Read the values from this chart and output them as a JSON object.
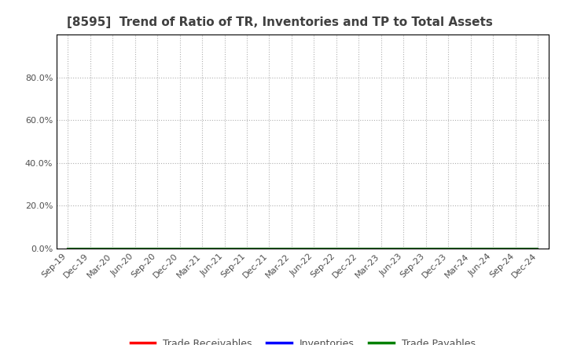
{
  "title": "[8595]  Trend of Ratio of TR, Inventories and TP to Total Assets",
  "title_fontsize": 11,
  "title_color": "#404040",
  "x_labels": [
    "Sep-19",
    "Dec-19",
    "Mar-20",
    "Jun-20",
    "Sep-20",
    "Dec-20",
    "Mar-21",
    "Jun-21",
    "Sep-21",
    "Dec-21",
    "Mar-22",
    "Jun-22",
    "Sep-22",
    "Dec-22",
    "Mar-23",
    "Jun-23",
    "Sep-23",
    "Dec-23",
    "Mar-24",
    "Jun-24",
    "Sep-24",
    "Dec-24"
  ],
  "trade_receivables": [
    0,
    0,
    0,
    0,
    0,
    0,
    0,
    0,
    0,
    0,
    0,
    0,
    0,
    0,
    0,
    0,
    0,
    0,
    0,
    0,
    0,
    0
  ],
  "inventories": [
    0,
    0,
    0,
    0,
    0,
    0,
    0,
    0,
    0,
    0,
    0,
    0,
    0,
    0,
    0,
    0,
    0,
    0,
    0,
    0,
    0,
    0
  ],
  "trade_payables": [
    0,
    0,
    0,
    0,
    0,
    0,
    0,
    0,
    0,
    0,
    0,
    0,
    0,
    0,
    0,
    0,
    0,
    0,
    0,
    0,
    0,
    0
  ],
  "tr_color": "#ff0000",
  "inv_color": "#0000ff",
  "tp_color": "#008000",
  "line_width": 1.5,
  "ylim": [
    0,
    1.0
  ],
  "yticks": [
    0.0,
    0.2,
    0.4,
    0.6,
    0.8
  ],
  "ytick_labels": [
    "0.0%",
    "20.0%",
    "40.0%",
    "60.0%",
    "80.0%"
  ],
  "background_color": "#ffffff",
  "plot_bg_color": "#ffffff",
  "grid_color": "#b0b0b0",
  "legend_labels": [
    "Trade Receivables",
    "Inventories",
    "Trade Payables"
  ],
  "legend_colors": [
    "#ff0000",
    "#0000ff",
    "#008000"
  ],
  "tick_label_color": "#505050",
  "tick_label_fontsize": 8,
  "border_color": "#000000"
}
